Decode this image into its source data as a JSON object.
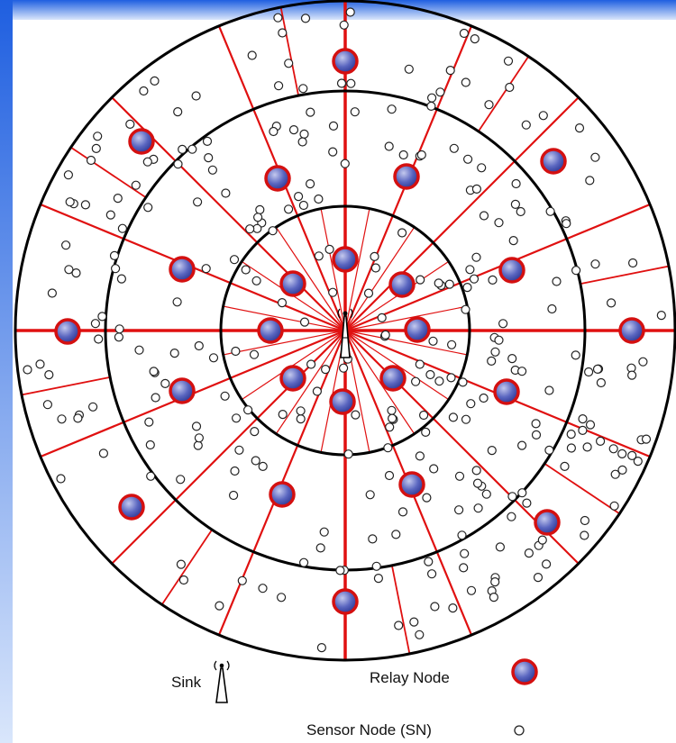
{
  "colors": {
    "background": "#ffffff",
    "frame_gradient_top": "#1f5fe0",
    "frame_gradient_bottom": "#d9e6fb",
    "ring": "#000000",
    "spoke": "#e01010",
    "relay_fill": "#3c49a8",
    "relay_highlight": "#c4c9ee",
    "relay_border": "#d41010",
    "sensor_stroke": "#222222"
  },
  "legend": {
    "sink_label": "Sink",
    "relay_label": "Relay Node",
    "sensor_label": "Sensor Node (SN)"
  },
  "icons": {
    "sink": "antenna-tower-icon",
    "relay": "relay-node-icon",
    "sensor": "sensor-node-icon"
  }
}
